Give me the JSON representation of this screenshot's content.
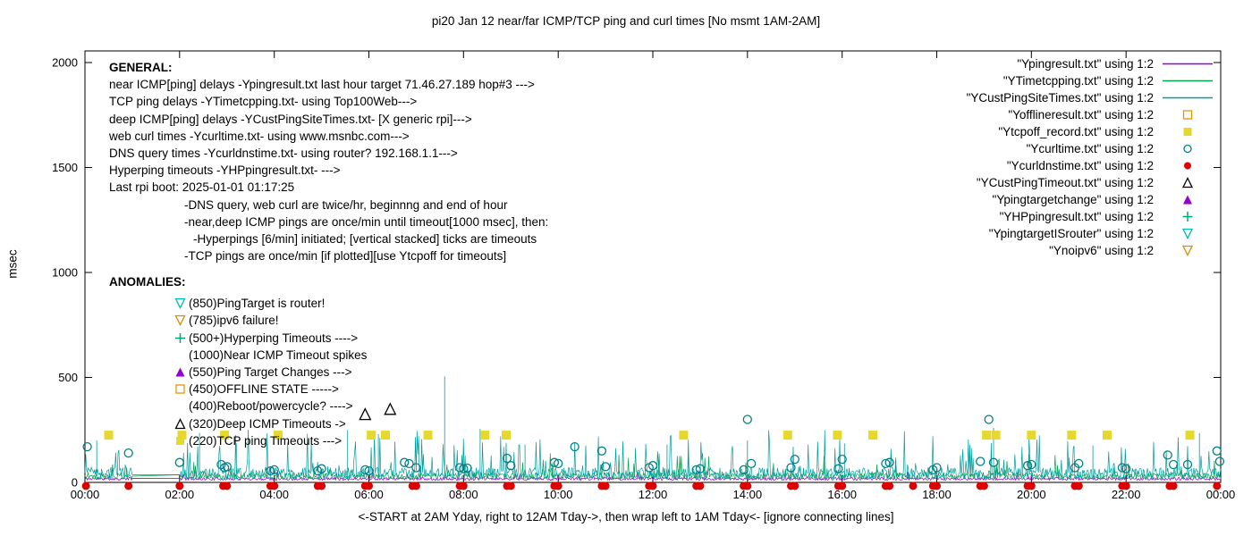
{
  "chart_data": {
    "type": "line",
    "title": "pi20 Jan 12  near/far ICMP/TCP ping and curl times [No msmt 1AM-2AM]",
    "xlabel": "<-START at 2AM Yday, right to 12AM Tday->, then wrap left to 1AM Tday<- [ignore connecting lines]",
    "ylabel": "msec",
    "ylim": [
      0,
      2000
    ],
    "xlim_hours": [
      0,
      24
    ],
    "yticks": [
      0,
      500,
      1000,
      1500,
      2000
    ],
    "xtick_labels": [
      "00:00",
      "02:00",
      "04:00",
      "06:00",
      "08:00",
      "10:00",
      "12:00",
      "14:00",
      "16:00",
      "18:00",
      "20:00",
      "22:00",
      "00:00"
    ],
    "gap_hours": [
      1,
      2
    ],
    "legend": [
      {
        "label": "\"Ypingresult.txt\" using 1:2",
        "marker": "line",
        "color": "#9400D3"
      },
      {
        "label": "\"YTimetcpping.txt\" using 1:2",
        "marker": "line",
        "color": "#00A550"
      },
      {
        "label": "\"YCustPingSiteTimes.txt\" using 1:2",
        "marker": "line",
        "color": "#009E9E"
      },
      {
        "label": "\"Yofflineresult.txt\" using 1:2",
        "marker": "square-open",
        "color": "#E69500"
      },
      {
        "label": "\"Ytcpoff_record.txt\" using 1:2",
        "marker": "square-filled",
        "color": "#E6D82D"
      },
      {
        "label": "\"Ycurltime.txt\" using 1:2",
        "marker": "circle-open",
        "color": "#00808A"
      },
      {
        "label": "\"Ycurldnstime.txt\" using 1:2",
        "marker": "circle-filled",
        "color": "#DD0000"
      },
      {
        "label": "\"YCustPingTimeout.txt\" using 1:2",
        "marker": "triangle-open",
        "color": "#000000"
      },
      {
        "label": "\"Ypingtargetchange\" using 1:2",
        "marker": "triangle-filled",
        "color": "#9400D3"
      },
      {
        "label": "\"YHPpingresult.txt\" using 1:2",
        "marker": "plus",
        "color": "#00A878"
      },
      {
        "label": "\"YpingtargetISrouter\" using 1:2",
        "marker": "triangle-down-open",
        "color": "#00B8B8"
      },
      {
        "label": "\"Ynoipv6\" using 1:2",
        "marker": "triangle-down-open",
        "color": "#D88A00"
      }
    ],
    "noise_series": [
      {
        "name": "Ypingresult",
        "color": "#9400D3",
        "seed": 11,
        "base": 10,
        "jitter": 14,
        "spike_chance": 0.02,
        "spike_max": 40,
        "spikes": []
      },
      {
        "name": "YTimetcpping",
        "color": "#00A550",
        "seed": 22,
        "base": 15,
        "jitter": 30,
        "spike_chance": 0.04,
        "spike_max": 110,
        "spikes": []
      },
      {
        "name": "YCustPingSiteTimes",
        "color": "#009E9E",
        "seed": 33,
        "base": 15,
        "jitter": 55,
        "spike_chance": 0.1,
        "spike_max": 190,
        "spikes": [
          [
            0.25,
            200
          ],
          [
            2.42,
            235
          ],
          [
            3.2,
            185
          ],
          [
            5.55,
            250
          ],
          [
            6.2,
            230
          ],
          [
            7.6,
            505
          ],
          [
            8.35,
            255
          ],
          [
            9.3,
            180
          ],
          [
            12.3,
            180
          ],
          [
            14.0,
            200
          ],
          [
            16.05,
            185
          ],
          [
            19.2,
            260
          ],
          [
            21.3,
            175
          ],
          [
            23.55,
            235
          ]
        ]
      }
    ],
    "point_series": [
      {
        "name": "Ytcpoff_record",
        "marker": "square-filled",
        "color": "#E6D82D",
        "size": 10,
        "points": [
          [
            0.5,
            225
          ],
          [
            2.05,
            225
          ],
          [
            2.95,
            225
          ],
          [
            4.08,
            225
          ],
          [
            6.05,
            225
          ],
          [
            6.35,
            225
          ],
          [
            7.25,
            225
          ],
          [
            8.45,
            225
          ],
          [
            8.9,
            225
          ],
          [
            12.65,
            225
          ],
          [
            14.85,
            225
          ],
          [
            15.9,
            225
          ],
          [
            16.65,
            225
          ],
          [
            19.05,
            225
          ],
          [
            19.25,
            225
          ],
          [
            20.0,
            225
          ],
          [
            20.85,
            225
          ],
          [
            21.6,
            225
          ],
          [
            23.35,
            225
          ]
        ]
      },
      {
        "name": "Ycurltime",
        "marker": "circle-open",
        "color": "#00808A",
        "size": 9,
        "points": [
          [
            0.05,
            170
          ],
          [
            0.92,
            140
          ],
          [
            2.0,
            95
          ],
          [
            2.88,
            85
          ],
          [
            2.95,
            70
          ],
          [
            3.0,
            75
          ],
          [
            3.92,
            55
          ],
          [
            4.0,
            60
          ],
          [
            4.92,
            55
          ],
          [
            5.0,
            65
          ],
          [
            5.92,
            60
          ],
          [
            6.0,
            55
          ],
          [
            6.75,
            95
          ],
          [
            6.85,
            90
          ],
          [
            7.0,
            70
          ],
          [
            7.92,
            70
          ],
          [
            8.0,
            65
          ],
          [
            8.08,
            68
          ],
          [
            8.92,
            115
          ],
          [
            9.0,
            80
          ],
          [
            9.92,
            95
          ],
          [
            10.0,
            90
          ],
          [
            10.35,
            170
          ],
          [
            10.92,
            150
          ],
          [
            11.0,
            75
          ],
          [
            11.92,
            70
          ],
          [
            12.0,
            80
          ],
          [
            12.92,
            60
          ],
          [
            13.0,
            65
          ],
          [
            13.92,
            60
          ],
          [
            14.0,
            300
          ],
          [
            14.08,
            90
          ],
          [
            14.92,
            70
          ],
          [
            15.0,
            110
          ],
          [
            15.92,
            65
          ],
          [
            16.0,
            110
          ],
          [
            16.92,
            90
          ],
          [
            17.0,
            95
          ],
          [
            17.92,
            60
          ],
          [
            18.0,
            70
          ],
          [
            18.92,
            100
          ],
          [
            19.1,
            300
          ],
          [
            19.2,
            95
          ],
          [
            19.92,
            80
          ],
          [
            20.0,
            85
          ],
          [
            20.92,
            70
          ],
          [
            21.0,
            90
          ],
          [
            21.92,
            70
          ],
          [
            22.0,
            65
          ],
          [
            22.88,
            130
          ],
          [
            23.0,
            85
          ],
          [
            23.3,
            85
          ],
          [
            23.92,
            150
          ],
          [
            23.98,
            100
          ]
        ]
      },
      {
        "name": "Ycurldnstime",
        "marker": "circle-filled",
        "color": "#DD0000",
        "size": 9,
        "dy": 4,
        "points": [
          [
            0.02,
            0
          ],
          [
            0.92,
            0
          ],
          [
            2.0,
            0
          ],
          [
            2.92,
            0
          ],
          [
            3.0,
            0
          ],
          [
            3.92,
            0
          ],
          [
            4.0,
            0
          ],
          [
            4.92,
            0
          ],
          [
            5.0,
            0
          ],
          [
            5.92,
            0
          ],
          [
            6.0,
            0
          ],
          [
            6.92,
            0
          ],
          [
            7.0,
            0
          ],
          [
            7.92,
            0
          ],
          [
            8.0,
            0
          ],
          [
            8.92,
            0
          ],
          [
            9.0,
            0
          ],
          [
            9.92,
            0
          ],
          [
            10.0,
            0
          ],
          [
            10.92,
            0
          ],
          [
            11.0,
            0
          ],
          [
            11.92,
            0
          ],
          [
            12.0,
            0
          ],
          [
            12.92,
            0
          ],
          [
            13.0,
            0
          ],
          [
            13.92,
            0
          ],
          [
            14.0,
            0
          ],
          [
            14.92,
            0
          ],
          [
            15.0,
            0
          ],
          [
            15.92,
            0
          ],
          [
            16.0,
            0
          ],
          [
            16.92,
            0
          ],
          [
            17.0,
            0
          ],
          [
            17.5,
            0
          ],
          [
            17.92,
            0
          ],
          [
            18.0,
            0
          ],
          [
            18.92,
            0
          ],
          [
            19.0,
            0
          ],
          [
            19.92,
            0
          ],
          [
            20.0,
            0
          ],
          [
            20.92,
            0
          ],
          [
            21.0,
            0
          ],
          [
            21.92,
            0
          ],
          [
            22.0,
            0
          ],
          [
            22.92,
            0
          ],
          [
            23.0,
            0
          ],
          [
            23.92,
            0
          ]
        ]
      },
      {
        "name": "YCustPingTimeout",
        "marker": "triangle-open",
        "color": "#000000",
        "size": 12,
        "points": [
          [
            5.92,
            325
          ],
          [
            6.45,
            350
          ]
        ]
      }
    ],
    "general": {
      "heading": "GENERAL:",
      "lines": [
        {
          "text": "near ICMP[ping] delays -Ypingresult.txt last hour target 71.46.27.189 hop#3 --->",
          "indent": 0
        },
        {
          "text": "TCP ping delays -YTimetcpping.txt- using Top100Web--->",
          "indent": 0
        },
        {
          "text": "deep ICMP[ping] delays -YCustPingSiteTimes.txt- [X generic rpi]--->",
          "indent": 0
        },
        {
          "text": "web curl times -Ycurltime.txt- using www.msnbc.com--->",
          "indent": 0
        },
        {
          "text": "DNS query times -Ycurldnstime.txt- using router? 192.168.1.1--->",
          "indent": 0
        },
        {
          "text": "Hyperping timeouts -YHPpingresult.txt- --->",
          "indent": 0
        },
        {
          "text": "Last rpi boot: 2025-01-01 01:17:25",
          "indent": 0
        },
        {
          "text": "-DNS query, web curl are twice/hr, beginnng and end of hour",
          "indent": 1
        },
        {
          "text": "-near,deep ICMP pings are once/min until timeout[1000 msec], then:",
          "indent": 1
        },
        {
          "text": "-Hyperpings [6/min] initiated; [vertical stacked] ticks are timeouts",
          "indent": 2
        },
        {
          "text": "-TCP pings are once/min [if plotted][use Ytcpoff for timeouts]",
          "indent": 1
        }
      ]
    },
    "anomalies": {
      "heading": "ANOMALIES:",
      "items": [
        {
          "marker": "triangle-down-open",
          "color": "#00B8B8",
          "text": "(850)PingTarget is router!"
        },
        {
          "marker": "triangle-down-open",
          "color": "#D88A00",
          "text": "(785)ipv6 failure!"
        },
        {
          "marker": "plus",
          "color": "#00A878",
          "text": "(500+)Hyperping Timeouts ---->"
        },
        {
          "marker": null,
          "color": null,
          "text": "(1000)Near ICMP Timeout spikes"
        },
        {
          "marker": "triangle-filled",
          "color": "#9400D3",
          "text": "(550)Ping Target Changes --->"
        },
        {
          "marker": "square-open",
          "color": "#E69500",
          "text": "(450)OFFLINE STATE ----->"
        },
        {
          "marker": null,
          "color": null,
          "text": "(400)Reboot/powercycle? ---->"
        },
        {
          "marker": "triangle-open",
          "color": "#000000",
          "text": "(320)Deep ICMP Timeouts ->"
        },
        {
          "marker": "square-filled",
          "color": "#E6D82D",
          "text": "(220)TCP ping Timeouts --->"
        }
      ]
    }
  }
}
